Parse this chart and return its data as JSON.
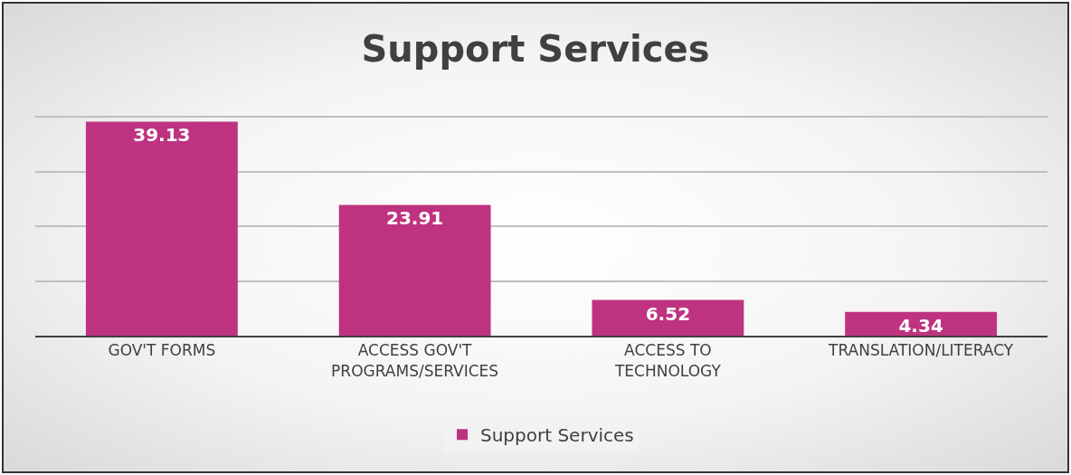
{
  "chart_data": {
    "type": "bar",
    "title": "Support Services",
    "categories": [
      "GOV'T FORMS",
      "ACCESS GOV'T PROGRAMS/SERVICES",
      "ACCESS TO TECHNOLOGY",
      "TRANSLATION/LITERACY"
    ],
    "series": [
      {
        "name": "Support Services",
        "color": "#be3380",
        "values": [
          39.13,
          23.91,
          6.52,
          4.34
        ]
      }
    ],
    "tick_labels": "x",
    "grid": "y",
    "legend": "bottom",
    "data_labels": true
  }
}
